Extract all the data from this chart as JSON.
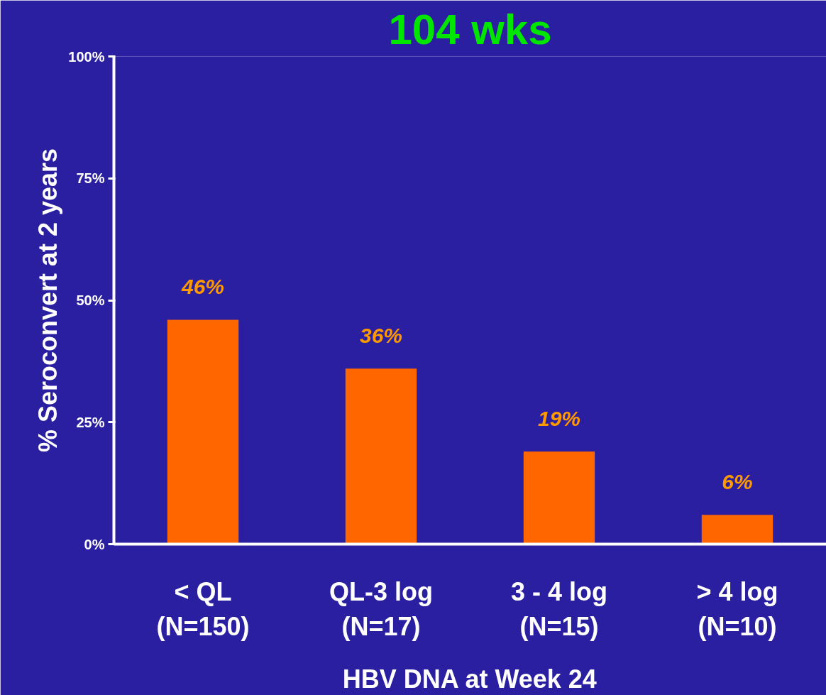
{
  "chart_data": {
    "type": "bar",
    "title": "104 wks",
    "xlabel": "HBV DNA at Week 24",
    "ylabel": "% Seroconvert at 2 years",
    "categories": [
      "< QL\n(N=150)",
      "QL-3 log\n(N=17)",
      "3 - 4 log\n(N=15)",
      "> 4 log\n(N=10)"
    ],
    "values": [
      46,
      36,
      19,
      6
    ],
    "color": "#ff6600",
    "value_labels": [
      "46%",
      "36%",
      "19%",
      "6%"
    ],
    "ylim": [
      0,
      100
    ],
    "yticks": [
      {
        "value": 0,
        "label": "0%"
      },
      {
        "value": 25,
        "label": "25%"
      },
      {
        "value": 50,
        "label": "50%"
      },
      {
        "value": 75,
        "label": "75%"
      },
      {
        "value": 100,
        "label": "100%"
      }
    ],
    "grid": false
  }
}
